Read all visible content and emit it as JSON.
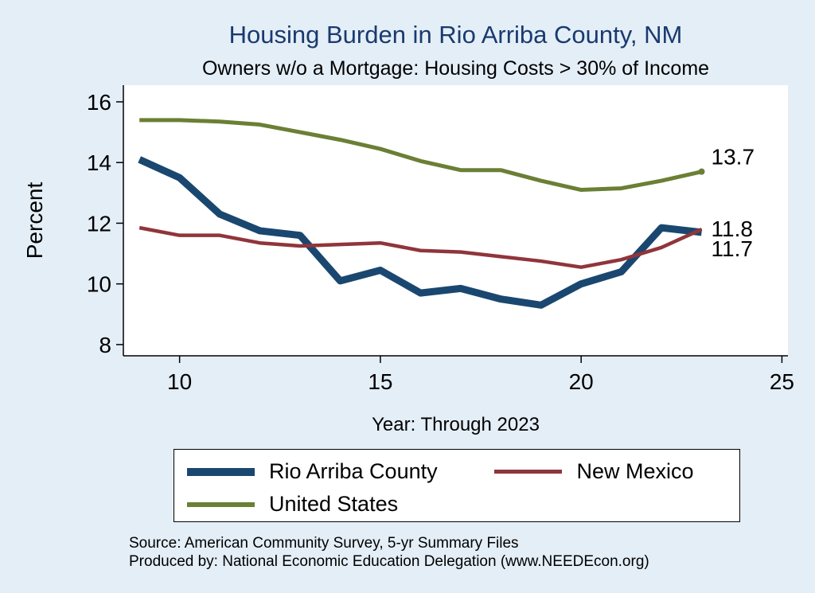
{
  "title": "Housing Burden in Rio Arriba County, NM",
  "subtitle": "Owners w/o a Mortgage: Housing Costs > 30% of Income",
  "source_line1": "Source: American Community Survey, 5-yr Summary Files",
  "source_line2": "Produced by: National Economic Education Delegation (www.NEEDEcon.org)",
  "colors": {
    "background": "#e4eef7",
    "plot_background": "#ffffff",
    "title": "#1a3a6e",
    "axis": "#000000"
  },
  "chart_data": {
    "type": "line",
    "title": "Housing Burden in Rio Arriba County, NM",
    "subtitle": "Owners w/o a Mortgage: Housing Costs > 30% of Income",
    "xlabel": "Year: Through 2023",
    "ylabel": "Percent",
    "x": [
      9,
      10,
      11,
      12,
      13,
      14,
      15,
      16,
      17,
      18,
      19,
      20,
      21,
      22,
      23
    ],
    "series": [
      {
        "name": "Rio Arriba County",
        "color": "#1a476f",
        "end_label": "11.7",
        "values": [
          14.1,
          13.5,
          12.3,
          11.75,
          11.6,
          10.1,
          10.45,
          9.7,
          9.85,
          9.5,
          9.3,
          10.0,
          10.4,
          11.85,
          11.7
        ]
      },
      {
        "name": "New Mexico",
        "color": "#90353b",
        "end_label": "11.8",
        "values": [
          11.85,
          11.6,
          11.6,
          11.35,
          11.25,
          11.3,
          11.35,
          11.1,
          11.05,
          10.9,
          10.75,
          10.55,
          10.8,
          11.2,
          11.8
        ]
      },
      {
        "name": "United States",
        "color": "#6b7f35",
        "end_label": "13.7",
        "values": [
          15.4,
          15.4,
          15.35,
          15.25,
          15.0,
          14.75,
          14.45,
          14.05,
          13.75,
          13.75,
          13.4,
          13.1,
          13.15,
          13.4,
          13.7
        ]
      }
    ],
    "xticks": [
      10,
      15,
      20,
      25
    ],
    "yticks": [
      8,
      10,
      12,
      14,
      16
    ],
    "xlim": [
      8.6,
      25.15
    ],
    "ylim": [
      7.63,
      16.55
    ],
    "grid": false,
    "legend_position": "bottom"
  }
}
